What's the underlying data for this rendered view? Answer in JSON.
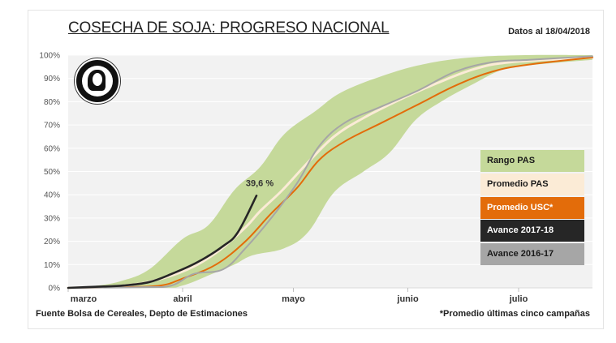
{
  "header": {
    "title": "COSECHA DE SOJA: PROGRESO NACIONAL",
    "date_label": "Datos al 18/04/2018"
  },
  "footer": {
    "source": "Fuente Bolsa de Cereales, Depto de Estimaciones",
    "footnote": "*Promedio últimas cinco campañas"
  },
  "logo": {
    "icon": "bolsa-de-cereales-seal-logo"
  },
  "chart_data": {
    "type": "area",
    "title": "COSECHA DE SOJA: PROGRESO NACIONAL",
    "xlabel": "",
    "ylabel": "",
    "x_unit": "days since March 1",
    "xlim": [
      0,
      142
    ],
    "ylim": [
      0,
      100
    ],
    "grid": true,
    "legend_position": "right",
    "y_ticks": [
      "0%",
      "10%",
      "20%",
      "30%",
      "40%",
      "50%",
      "60%",
      "70%",
      "80%",
      "90%",
      "100%"
    ],
    "y_tick_values": [
      0,
      10,
      20,
      30,
      40,
      50,
      60,
      70,
      80,
      90,
      100
    ],
    "x_ticks": [
      {
        "label": "marzo",
        "day": 0
      },
      {
        "label": "abril",
        "day": 31
      },
      {
        "label": "mayo",
        "day": 61
      },
      {
        "label": "junio",
        "day": 92
      },
      {
        "label": "julio",
        "day": 122
      }
    ],
    "range": {
      "name": "Rango PAS",
      "color": "#c5d99a",
      "upper": [
        [
          0,
          0
        ],
        [
          8,
          1
        ],
        [
          14.5,
          3
        ],
        [
          22,
          8
        ],
        [
          31,
          21
        ],
        [
          38,
          27
        ],
        [
          45,
          42
        ],
        [
          52,
          52
        ],
        [
          58.5,
          66
        ],
        [
          67,
          76
        ],
        [
          74,
          84
        ],
        [
          85,
          91
        ],
        [
          96,
          96
        ],
        [
          109,
          99
        ],
        [
          124,
          100
        ],
        [
          142,
          100
        ]
      ],
      "lower": [
        [
          0,
          0
        ],
        [
          25,
          0
        ],
        [
          31,
          1
        ],
        [
          39,
          6
        ],
        [
          45,
          10
        ],
        [
          50,
          14
        ],
        [
          58.5,
          17
        ],
        [
          65,
          24
        ],
        [
          72,
          41
        ],
        [
          80,
          50
        ],
        [
          87,
          58
        ],
        [
          94,
          72
        ],
        [
          101,
          80
        ],
        [
          109,
          87
        ],
        [
          118,
          94
        ],
        [
          127,
          96
        ],
        [
          142,
          98
        ]
      ]
    },
    "series": [
      {
        "name": "Promedio PAS",
        "color": "#fbebd6",
        "values": [
          [
            0,
            0
          ],
          [
            10,
            0.5
          ],
          [
            20,
            2
          ],
          [
            31,
            7
          ],
          [
            40,
            15
          ],
          [
            48,
            26
          ],
          [
            52,
            33
          ],
          [
            58,
            42
          ],
          [
            65,
            54
          ],
          [
            72,
            65
          ],
          [
            80,
            73
          ],
          [
            90,
            81
          ],
          [
            100,
            88
          ],
          [
            110,
            94
          ],
          [
            120,
            97
          ],
          [
            142,
            99
          ]
        ]
      },
      {
        "name": "Promedio  USC*",
        "color": "#e36c0a",
        "values": [
          [
            0,
            0
          ],
          [
            15,
            0.3
          ],
          [
            25,
            1
          ],
          [
            31,
            4
          ],
          [
            40,
            10
          ],
          [
            48,
            20
          ],
          [
            55,
            32
          ],
          [
            62,
            43
          ],
          [
            68,
            55
          ],
          [
            75,
            63
          ],
          [
            85,
            71
          ],
          [
            95,
            79
          ],
          [
            105,
            87
          ],
          [
            115,
            93
          ],
          [
            125,
            96
          ],
          [
            142,
            99
          ]
        ]
      },
      {
        "name": "Avance 2016-17",
        "color": "#a6a6a6",
        "values": [
          [
            0,
            0
          ],
          [
            20,
            0.3
          ],
          [
            28,
            1
          ],
          [
            34,
            6
          ],
          [
            42,
            8
          ],
          [
            48,
            17
          ],
          [
            55,
            30
          ],
          [
            62,
            45
          ],
          [
            68,
            61
          ],
          [
            75,
            71
          ],
          [
            85,
            78
          ],
          [
            95,
            85
          ],
          [
            105,
            93
          ],
          [
            115,
            97
          ],
          [
            125,
            98
          ],
          [
            142,
            99.5
          ]
        ]
      },
      {
        "name": "Avance 2017-18",
        "color": "#262626",
        "values": [
          [
            0,
            0
          ],
          [
            8,
            0.5
          ],
          [
            15,
            1
          ],
          [
            22,
            2.5
          ],
          [
            28,
            6
          ],
          [
            35,
            11
          ],
          [
            42,
            18
          ],
          [
            46,
            24
          ],
          [
            51,
            39.6
          ]
        ]
      }
    ],
    "annotations": [
      {
        "text": "39,6 %",
        "series": "Avance 2017-18",
        "day": 51,
        "value": 39.6
      }
    ],
    "legend": [
      {
        "label": "Rango PAS",
        "bg": "#c5d99a",
        "fg": "#1a1a1a"
      },
      {
        "label": "Promedio PAS",
        "bg": "#fbebd6",
        "fg": "#1a1a1a"
      },
      {
        "label": "Promedio  USC*",
        "bg": "#e36c0a",
        "fg": "#ffffff"
      },
      {
        "label": "Avance 2017-18",
        "bg": "#262626",
        "fg": "#ffffff"
      },
      {
        "label": "Avance 2016-17",
        "bg": "#a6a6a6",
        "fg": "#1a1a1a"
      }
    ]
  }
}
